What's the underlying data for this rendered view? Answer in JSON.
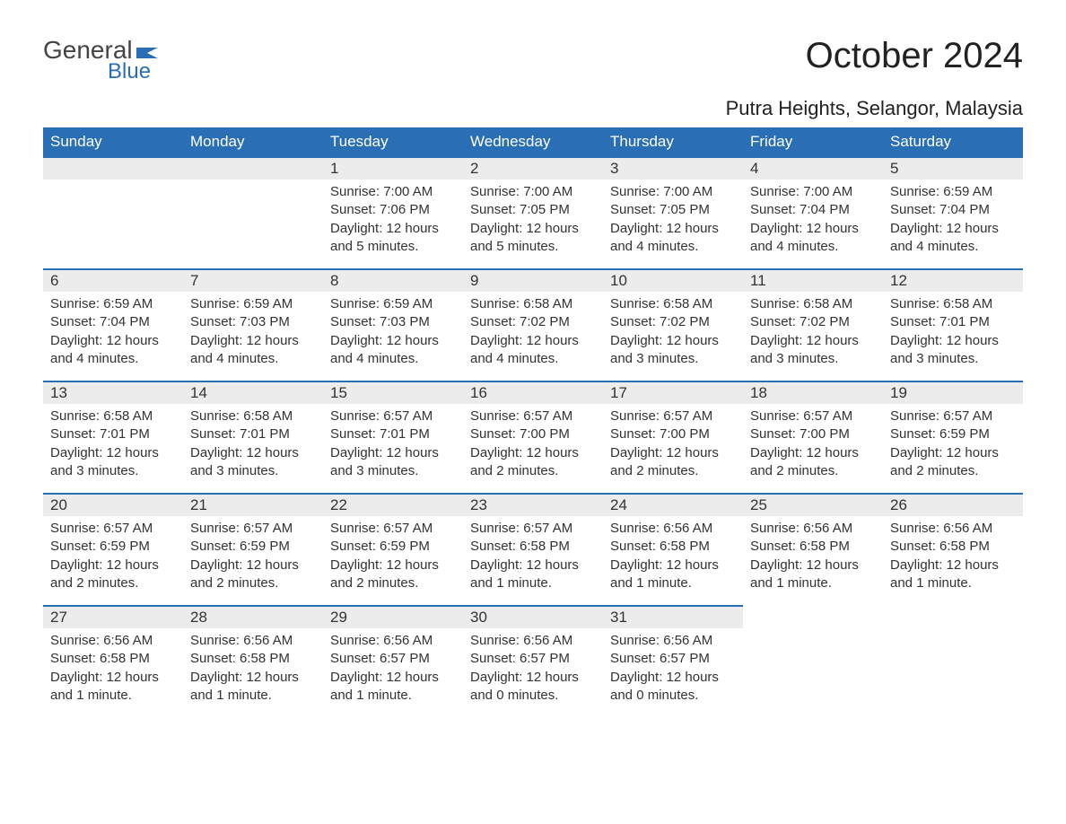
{
  "logo": {
    "word1": "General",
    "word2": "Blue"
  },
  "title": "October 2024",
  "location": "Putra Heights, Selangor, Malaysia",
  "colors": {
    "header_bg": "#2a6fb5",
    "header_fg": "#ffffff",
    "daynum_bg": "#ececec",
    "rule": "#2a6fb5",
    "text": "#333333",
    "page_bg": "#ffffff"
  },
  "typography": {
    "title_fontsize": 40,
    "location_fontsize": 22,
    "header_fontsize": 17,
    "body_fontsize": 15
  },
  "layout": {
    "columns": 7,
    "rows": 5,
    "start_day_index": 2
  },
  "daynames": [
    "Sunday",
    "Monday",
    "Tuesday",
    "Wednesday",
    "Thursday",
    "Friday",
    "Saturday"
  ],
  "labels": {
    "sunrise": "Sunrise:",
    "sunset": "Sunset:",
    "daylight": "Daylight:"
  },
  "days": [
    {
      "n": 1,
      "sunrise": "7:00 AM",
      "sunset": "7:06 PM",
      "daylight": "12 hours and 5 minutes."
    },
    {
      "n": 2,
      "sunrise": "7:00 AM",
      "sunset": "7:05 PM",
      "daylight": "12 hours and 5 minutes."
    },
    {
      "n": 3,
      "sunrise": "7:00 AM",
      "sunset": "7:05 PM",
      "daylight": "12 hours and 4 minutes."
    },
    {
      "n": 4,
      "sunrise": "7:00 AM",
      "sunset": "7:04 PM",
      "daylight": "12 hours and 4 minutes."
    },
    {
      "n": 5,
      "sunrise": "6:59 AM",
      "sunset": "7:04 PM",
      "daylight": "12 hours and 4 minutes."
    },
    {
      "n": 6,
      "sunrise": "6:59 AM",
      "sunset": "7:04 PM",
      "daylight": "12 hours and 4 minutes."
    },
    {
      "n": 7,
      "sunrise": "6:59 AM",
      "sunset": "7:03 PM",
      "daylight": "12 hours and 4 minutes."
    },
    {
      "n": 8,
      "sunrise": "6:59 AM",
      "sunset": "7:03 PM",
      "daylight": "12 hours and 4 minutes."
    },
    {
      "n": 9,
      "sunrise": "6:58 AM",
      "sunset": "7:02 PM",
      "daylight": "12 hours and 4 minutes."
    },
    {
      "n": 10,
      "sunrise": "6:58 AM",
      "sunset": "7:02 PM",
      "daylight": "12 hours and 3 minutes."
    },
    {
      "n": 11,
      "sunrise": "6:58 AM",
      "sunset": "7:02 PM",
      "daylight": "12 hours and 3 minutes."
    },
    {
      "n": 12,
      "sunrise": "6:58 AM",
      "sunset": "7:01 PM",
      "daylight": "12 hours and 3 minutes."
    },
    {
      "n": 13,
      "sunrise": "6:58 AM",
      "sunset": "7:01 PM",
      "daylight": "12 hours and 3 minutes."
    },
    {
      "n": 14,
      "sunrise": "6:58 AM",
      "sunset": "7:01 PM",
      "daylight": "12 hours and 3 minutes."
    },
    {
      "n": 15,
      "sunrise": "6:57 AM",
      "sunset": "7:01 PM",
      "daylight": "12 hours and 3 minutes."
    },
    {
      "n": 16,
      "sunrise": "6:57 AM",
      "sunset": "7:00 PM",
      "daylight": "12 hours and 2 minutes."
    },
    {
      "n": 17,
      "sunrise": "6:57 AM",
      "sunset": "7:00 PM",
      "daylight": "12 hours and 2 minutes."
    },
    {
      "n": 18,
      "sunrise": "6:57 AM",
      "sunset": "7:00 PM",
      "daylight": "12 hours and 2 minutes."
    },
    {
      "n": 19,
      "sunrise": "6:57 AM",
      "sunset": "6:59 PM",
      "daylight": "12 hours and 2 minutes."
    },
    {
      "n": 20,
      "sunrise": "6:57 AM",
      "sunset": "6:59 PM",
      "daylight": "12 hours and 2 minutes."
    },
    {
      "n": 21,
      "sunrise": "6:57 AM",
      "sunset": "6:59 PM",
      "daylight": "12 hours and 2 minutes."
    },
    {
      "n": 22,
      "sunrise": "6:57 AM",
      "sunset": "6:59 PM",
      "daylight": "12 hours and 2 minutes."
    },
    {
      "n": 23,
      "sunrise": "6:57 AM",
      "sunset": "6:58 PM",
      "daylight": "12 hours and 1 minute."
    },
    {
      "n": 24,
      "sunrise": "6:56 AM",
      "sunset": "6:58 PM",
      "daylight": "12 hours and 1 minute."
    },
    {
      "n": 25,
      "sunrise": "6:56 AM",
      "sunset": "6:58 PM",
      "daylight": "12 hours and 1 minute."
    },
    {
      "n": 26,
      "sunrise": "6:56 AM",
      "sunset": "6:58 PM",
      "daylight": "12 hours and 1 minute."
    },
    {
      "n": 27,
      "sunrise": "6:56 AM",
      "sunset": "6:58 PM",
      "daylight": "12 hours and 1 minute."
    },
    {
      "n": 28,
      "sunrise": "6:56 AM",
      "sunset": "6:58 PM",
      "daylight": "12 hours and 1 minute."
    },
    {
      "n": 29,
      "sunrise": "6:56 AM",
      "sunset": "6:57 PM",
      "daylight": "12 hours and 1 minute."
    },
    {
      "n": 30,
      "sunrise": "6:56 AM",
      "sunset": "6:57 PM",
      "daylight": "12 hours and 0 minutes."
    },
    {
      "n": 31,
      "sunrise": "6:56 AM",
      "sunset": "6:57 PM",
      "daylight": "12 hours and 0 minutes."
    }
  ]
}
